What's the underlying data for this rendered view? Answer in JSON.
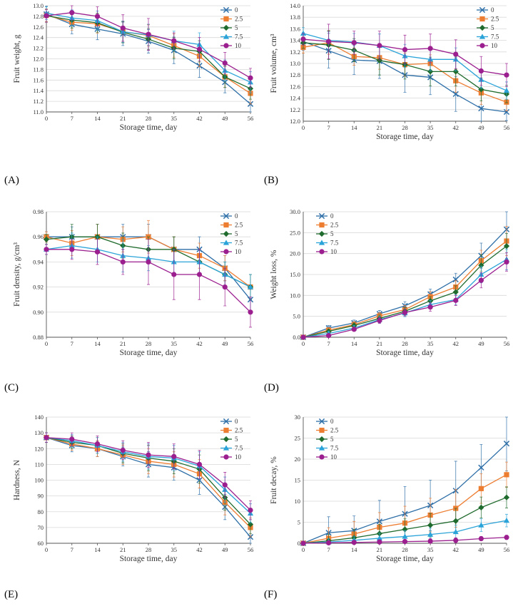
{
  "figure": {
    "panels": [
      "(A)",
      "(B)",
      "(C)",
      "(D)",
      "(E)",
      "(F)"
    ]
  },
  "colors": {
    "0": "#2e6fa8",
    "2.5": "#ed7d31",
    "5": "#1f6b2d",
    "7.5": "#2aa3d8",
    "10": "#9b1f8f",
    "grid": "#d9d9d9",
    "axis": "#555555"
  },
  "chart_data": [
    {
      "id": "A",
      "type": "line",
      "title": "",
      "xlabel": "Storage time, day",
      "ylabel": "Fruit weight, g",
      "x": [
        0,
        7,
        14,
        21,
        28,
        35,
        42,
        49,
        56
      ],
      "xticks": [
        "0",
        "7",
        "14",
        "21",
        "28",
        "35",
        "42",
        "49",
        "56"
      ],
      "ylim": [
        11.0,
        13.0
      ],
      "yticks": [
        "11.0",
        "11.2",
        "11.4",
        "11.6",
        "11.8",
        "12.0",
        "12.2",
        "12.4",
        "12.6",
        "12.8",
        "13.0"
      ],
      "legend_position": "top-right",
      "grid": "horizontal",
      "series": [
        {
          "name": "0",
          "marker": "x",
          "values": [
            12.84,
            12.65,
            12.56,
            12.47,
            12.33,
            12.16,
            11.87,
            11.56,
            11.15
          ],
          "errors": [
            0.15,
            0.18,
            0.2,
            0.22,
            0.22,
            0.25,
            0.22,
            0.2,
            0.2
          ]
        },
        {
          "name": "2.5",
          "marker": "square",
          "values": [
            12.82,
            12.69,
            12.66,
            12.51,
            12.44,
            12.25,
            12.05,
            11.66,
            11.35
          ],
          "errors": [
            0.12,
            0.15,
            0.18,
            0.2,
            0.2,
            0.22,
            0.2,
            0.2,
            0.2
          ]
        },
        {
          "name": "5",
          "marker": "diamond",
          "values": [
            12.81,
            12.73,
            12.68,
            12.5,
            12.37,
            12.2,
            12.14,
            11.66,
            11.44
          ],
          "errors": [
            0.12,
            0.15,
            0.18,
            0.2,
            0.2,
            0.2,
            0.2,
            0.2,
            0.2
          ]
        },
        {
          "name": "7.5",
          "marker": "triangle",
          "values": [
            12.86,
            12.77,
            12.72,
            12.51,
            12.45,
            12.34,
            12.27,
            11.78,
            11.56
          ],
          "errors": [
            0.12,
            0.15,
            0.18,
            0.2,
            0.2,
            0.18,
            0.22,
            0.2,
            0.2
          ]
        },
        {
          "name": "10",
          "marker": "circle",
          "values": [
            12.81,
            12.87,
            12.8,
            12.58,
            12.46,
            12.34,
            12.18,
            11.92,
            11.64
          ],
          "errors": [
            0.12,
            0.14,
            0.18,
            0.25,
            0.3,
            0.15,
            0.22,
            0.2,
            0.18
          ]
        }
      ]
    },
    {
      "id": "B",
      "type": "line",
      "title": "",
      "xlabel": "Storage time, day",
      "ylabel": "Fruit volume, cm³",
      "x": [
        0,
        7,
        14,
        21,
        28,
        35,
        42,
        49,
        56
      ],
      "xticks": [
        "0",
        "7",
        "14",
        "21",
        "28",
        "35",
        "42",
        "49",
        "56"
      ],
      "ylim": [
        12.0,
        14.0
      ],
      "yticks": [
        "12.0",
        "12.2",
        "12.4",
        "12.6",
        "12.8",
        "13.0",
        "13.2",
        "13.4",
        "13.6",
        "13.8",
        "14.0"
      ],
      "legend_position": "top-right",
      "grid": "horizontal",
      "series": [
        {
          "name": "0",
          "marker": "x",
          "values": [
            13.38,
            13.22,
            13.06,
            13.04,
            12.8,
            12.76,
            12.47,
            12.22,
            12.16
          ],
          "errors": [
            0.15,
            0.3,
            0.25,
            0.3,
            0.3,
            0.3,
            0.3,
            0.25,
            0.15
          ]
        },
        {
          "name": "2.5",
          "marker": "square",
          "values": [
            13.28,
            13.36,
            13.12,
            13.1,
            12.98,
            13.0,
            12.7,
            12.49,
            12.33
          ],
          "errors": [
            0.1,
            0.2,
            0.15,
            0.2,
            0.2,
            0.15,
            0.2,
            0.2,
            0.15
          ]
        },
        {
          "name": "5",
          "marker": "diamond",
          "values": [
            13.36,
            13.32,
            13.23,
            13.05,
            12.98,
            12.86,
            12.86,
            12.55,
            12.47
          ],
          "errors": [
            0.1,
            0.25,
            0.2,
            0.25,
            0.25,
            0.25,
            0.25,
            0.2,
            0.15
          ]
        },
        {
          "name": "7.5",
          "marker": "triangle",
          "values": [
            13.52,
            13.4,
            13.37,
            13.31,
            13.13,
            13.07,
            13.07,
            12.72,
            12.53
          ],
          "errors": [
            0.1,
            0.15,
            0.15,
            0.2,
            0.2,
            0.2,
            0.2,
            0.15,
            0.15
          ]
        },
        {
          "name": "10",
          "marker": "circle",
          "values": [
            13.42,
            13.38,
            13.36,
            13.31,
            13.24,
            13.26,
            13.16,
            12.87,
            12.8
          ],
          "errors": [
            0.1,
            0.3,
            0.2,
            0.25,
            0.25,
            0.25,
            0.25,
            0.25,
            0.2
          ]
        }
      ]
    },
    {
      "id": "C",
      "type": "line",
      "title": "",
      "xlabel": "Storage time, day",
      "ylabel": "Fruit density, g/cm³",
      "x": [
        0,
        7,
        14,
        21,
        28,
        35,
        42,
        49,
        56
      ],
      "xticks": [
        "0",
        "7",
        "14",
        "21",
        "28",
        "35",
        "42",
        "49",
        "56"
      ],
      "ylim": [
        0.88,
        0.98
      ],
      "yticks": [
        "0.88",
        "0.90",
        "0.92",
        "0.94",
        "0.96",
        "0.98"
      ],
      "legend_position": "top-right",
      "grid": "horizontal",
      "series": [
        {
          "name": "0",
          "marker": "x",
          "values": [
            0.96,
            0.96,
            0.96,
            0.96,
            0.96,
            0.95,
            0.95,
            0.935,
            0.91
          ],
          "errors": [
            0.004,
            0.008,
            0.01,
            0.01,
            0.01,
            0.01,
            0.01,
            0.01,
            0.01
          ]
        },
        {
          "name": "2.5",
          "marker": "square",
          "values": [
            0.96,
            0.955,
            0.96,
            0.958,
            0.96,
            0.95,
            0.945,
            0.935,
            0.92
          ],
          "errors": [
            0.004,
            0.01,
            0.01,
            0.01,
            0.013,
            0.01,
            0.01,
            0.01,
            0.01
          ]
        },
        {
          "name": "5",
          "marker": "diamond",
          "values": [
            0.958,
            0.96,
            0.96,
            0.953,
            0.95,
            0.95,
            0.94,
            0.93,
            0.92
          ],
          "errors": [
            0.004,
            0.01,
            0.01,
            0.01,
            0.01,
            0.01,
            0.01,
            0.01,
            0.01
          ]
        },
        {
          "name": "7.5",
          "marker": "triangle",
          "values": [
            0.95,
            0.953,
            0.95,
            0.945,
            0.943,
            0.94,
            0.94,
            0.93,
            0.92
          ],
          "errors": [
            0.004,
            0.01,
            0.01,
            0.013,
            0.01,
            0.01,
            0.01,
            0.01,
            0.01
          ]
        },
        {
          "name": "10",
          "marker": "circle",
          "values": [
            0.95,
            0.95,
            0.948,
            0.94,
            0.94,
            0.93,
            0.93,
            0.92,
            0.9
          ],
          "errors": [
            0.004,
            0.008,
            0.01,
            0.01,
            0.018,
            0.02,
            0.02,
            0.015,
            0.012
          ]
        }
      ]
    },
    {
      "id": "D",
      "type": "line",
      "title": "",
      "xlabel": "Storage time, day",
      "ylabel": "Weight loss, %",
      "x": [
        0,
        7,
        14,
        21,
        28,
        35,
        42,
        49,
        56
      ],
      "xticks": [
        "0",
        "7",
        "14",
        "21",
        "28",
        "35",
        "42",
        "49",
        "56"
      ],
      "ylim": [
        0,
        30
      ],
      "yticks": [
        "0.0",
        "5.0",
        "10.0",
        "15.0",
        "20.0",
        "25.0",
        "30.0"
      ],
      "legend_position": "top-left",
      "grid": "horizontal",
      "series": [
        {
          "name": "0",
          "marker": "x",
          "values": [
            0,
            2.2,
            3.4,
            5.6,
            7.5,
            10.3,
            13.8,
            19.5,
            25.8
          ],
          "errors": [
            0.2,
            0.6,
            0.7,
            0.8,
            1.0,
            1.2,
            1.5,
            3.0,
            4.2
          ]
        },
        {
          "name": "2.5",
          "marker": "square",
          "values": [
            0,
            1.7,
            3.0,
            5.1,
            6.6,
            9.7,
            12.0,
            18.3,
            23.0
          ],
          "errors": [
            0.2,
            0.6,
            0.7,
            0.8,
            1.0,
            1.2,
            1.5,
            2.5,
            3.5
          ]
        },
        {
          "name": "5",
          "marker": "diamond",
          "values": [
            0,
            1.4,
            2.8,
            4.5,
            6.2,
            8.7,
            10.8,
            17.2,
            21.8
          ],
          "errors": [
            0.2,
            0.5,
            0.6,
            0.8,
            0.9,
            1.0,
            1.5,
            2.5,
            3.0
          ]
        },
        {
          "name": "7.5",
          "marker": "triangle",
          "values": [
            0,
            0.9,
            2.2,
            4.2,
            5.8,
            7.8,
            9.0,
            15.0,
            18.6
          ],
          "errors": [
            0.2,
            0.5,
            0.6,
            0.8,
            0.9,
            1.0,
            1.2,
            2.0,
            2.5
          ]
        },
        {
          "name": "10",
          "marker": "circle",
          "values": [
            0,
            0.4,
            1.9,
            4.0,
            5.9,
            7.2,
            8.8,
            13.6,
            18.0
          ],
          "errors": [
            0.2,
            0.4,
            0.5,
            0.7,
            0.8,
            1.0,
            1.2,
            1.8,
            2.2
          ]
        }
      ]
    },
    {
      "id": "E",
      "type": "line",
      "title": "",
      "xlabel": "Storage time, day",
      "ylabel": "Hardness, N",
      "x": [
        0,
        7,
        14,
        21,
        28,
        35,
        42,
        49,
        56
      ],
      "xticks": [
        "0",
        "7",
        "14",
        "21",
        "28",
        "35",
        "42",
        "49",
        "56"
      ],
      "ylim": [
        60,
        140
      ],
      "yticks": [
        "60",
        "70",
        "80",
        "90",
        "100",
        "110",
        "120",
        "130",
        "140"
      ],
      "legend_position": "top-right",
      "grid": "horizontal",
      "series": [
        {
          "name": "0",
          "marker": "x",
          "values": [
            127,
            122,
            120,
            115,
            110,
            108,
            100,
            83,
            64
          ],
          "errors": [
            3,
            4,
            5,
            6,
            8,
            8,
            9,
            8,
            6
          ]
        },
        {
          "name": "2.5",
          "marker": "square",
          "values": [
            127,
            123,
            120,
            116,
            112,
            110,
            104,
            86,
            70
          ],
          "errors": [
            3,
            4,
            5,
            6,
            8,
            8,
            9,
            8,
            6
          ]
        },
        {
          "name": "5",
          "marker": "diamond",
          "values": [
            127,
            124,
            122,
            117,
            114,
            112,
            107,
            89,
            72
          ],
          "errors": [
            3,
            4,
            5,
            6,
            8,
            8,
            9,
            8,
            6
          ]
        },
        {
          "name": "7.5",
          "marker": "triangle",
          "values": [
            127,
            125,
            122,
            118,
            115,
            114,
            109,
            94,
            79
          ],
          "errors": [
            3,
            4,
            5,
            6,
            8,
            8,
            9,
            8,
            6
          ]
        },
        {
          "name": "10",
          "marker": "circle",
          "values": [
            127,
            126,
            123,
            119,
            116,
            115,
            110,
            97,
            81
          ],
          "errors": [
            3,
            4,
            5,
            6,
            8,
            8,
            9,
            8,
            6
          ]
        }
      ]
    },
    {
      "id": "F",
      "type": "line",
      "title": "",
      "xlabel": "Storage time, day",
      "ylabel": "Fruit decay, %",
      "x": [
        0,
        7,
        14,
        21,
        28,
        35,
        42,
        49,
        56
      ],
      "xticks": [
        "0",
        "7",
        "14",
        "21",
        "28",
        "35",
        "42",
        "49",
        "56"
      ],
      "ylim": [
        0,
        30
      ],
      "yticks": [
        "0",
        "5",
        "10",
        "15",
        "20",
        "25",
        "30"
      ],
      "legend_position": "top-left",
      "grid": "horizontal",
      "series": [
        {
          "name": "0",
          "marker": "x",
          "values": [
            0,
            2.5,
            3.0,
            5.2,
            7.0,
            9.0,
            12.5,
            18.0,
            23.7
          ],
          "errors": [
            0.5,
            3.8,
            3.5,
            5.0,
            6.5,
            6.0,
            7.0,
            5.5,
            6.5
          ]
        },
        {
          "name": "2.5",
          "marker": "square",
          "values": [
            0,
            1.2,
            2.2,
            3.8,
            4.8,
            6.7,
            8.3,
            13.0,
            16.3
          ],
          "errors": [
            0.3,
            2.5,
            3.0,
            3.5,
            4.0,
            4.0,
            4.5,
            3.5,
            3.0
          ]
        },
        {
          "name": "5",
          "marker": "diamond",
          "values": [
            0,
            0.6,
            1.3,
            2.3,
            3.3,
            4.3,
            5.3,
            8.5,
            10.9
          ],
          "errors": [
            0.3,
            1.5,
            2.0,
            2.2,
            2.5,
            2.8,
            3.0,
            2.5,
            2.5
          ]
        },
        {
          "name": "7.5",
          "marker": "triangle",
          "values": [
            0,
            0.3,
            0.7,
            1.2,
            1.6,
            2.1,
            2.7,
            4.3,
            5.4
          ],
          "errors": [
            0.2,
            0.8,
            1.0,
            1.2,
            1.4,
            1.5,
            1.6,
            1.5,
            1.5
          ]
        },
        {
          "name": "10",
          "marker": "circle",
          "values": [
            0,
            0.1,
            0.2,
            0.3,
            0.4,
            0.5,
            0.7,
            1.1,
            1.4
          ],
          "errors": [
            0.1,
            0.3,
            0.4,
            0.5,
            0.5,
            0.6,
            0.6,
            0.5,
            0.5
          ]
        }
      ]
    }
  ]
}
